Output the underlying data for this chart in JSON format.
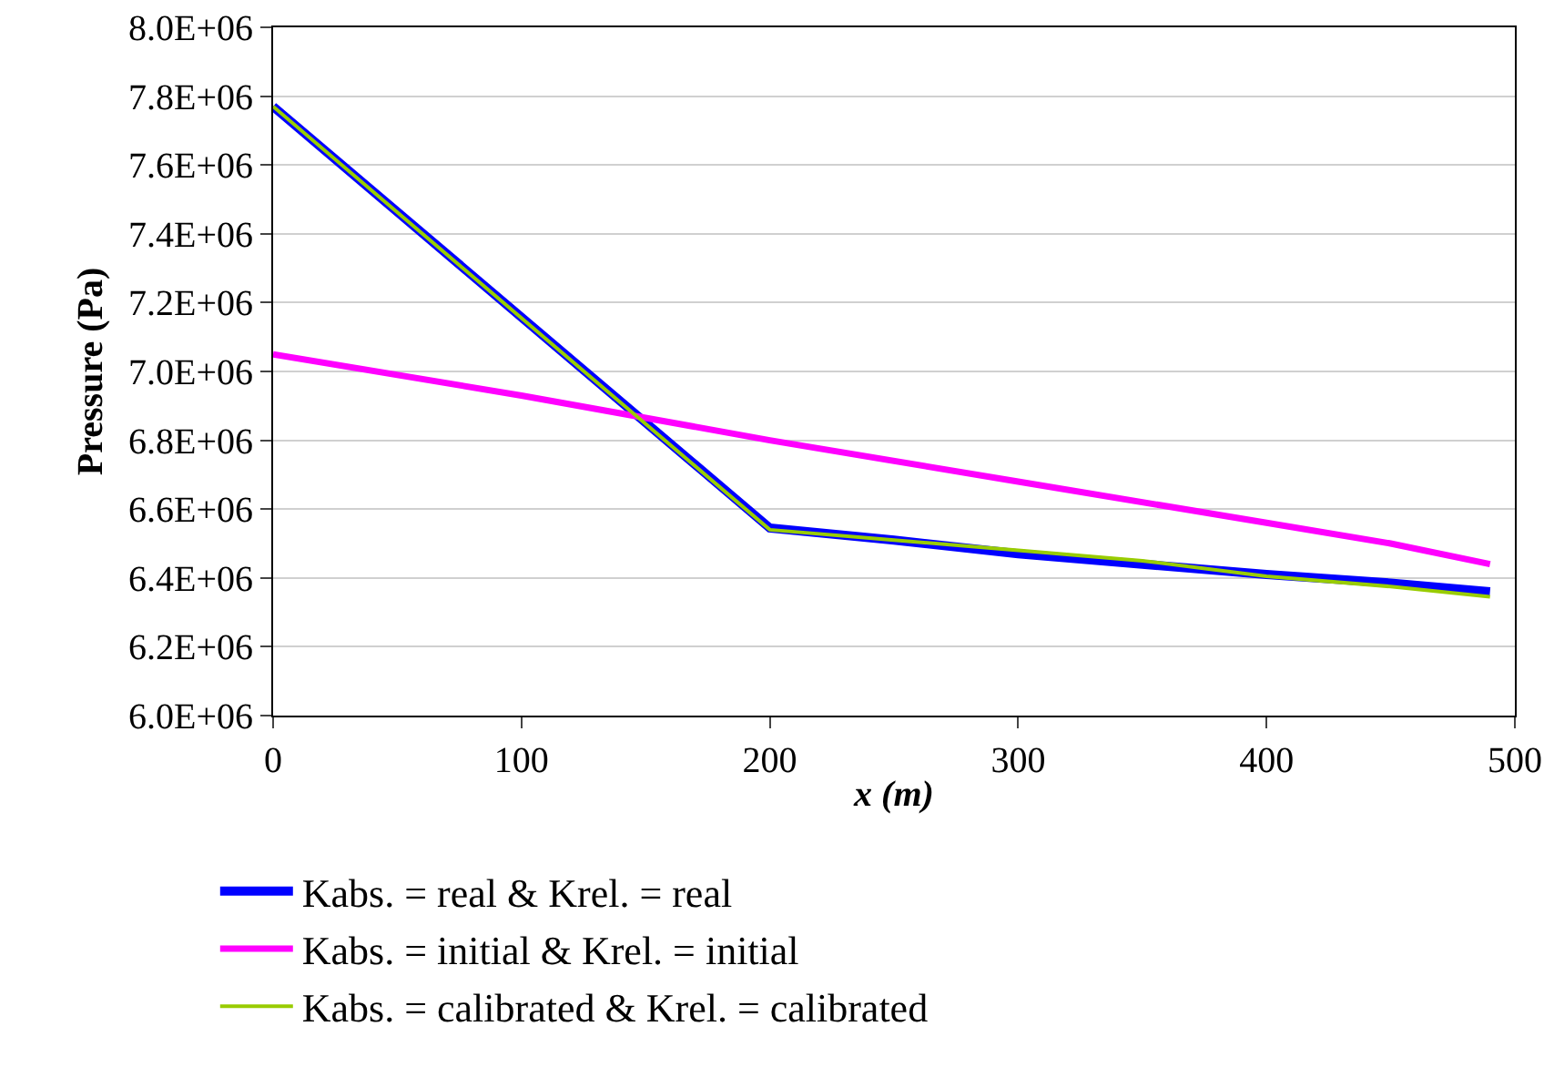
{
  "chart_data": {
    "type": "line",
    "xlabel": "x (m)",
    "ylabel": "Pressure (Pa)",
    "xlim": [
      0,
      500
    ],
    "xticks": [
      0,
      100,
      200,
      300,
      400,
      500
    ],
    "ylim": [
      6000000,
      8000000
    ],
    "yticks": [
      {
        "value": 6000000,
        "label": "6.0E+06"
      },
      {
        "value": 6200000,
        "label": "6.2E+06"
      },
      {
        "value": 6400000,
        "label": "6.4E+06"
      },
      {
        "value": 6600000,
        "label": "6.6E+06"
      },
      {
        "value": 6800000,
        "label": "6.8E+06"
      },
      {
        "value": 7000000,
        "label": "7.0E+06"
      },
      {
        "value": 7200000,
        "label": "7.2E+06"
      },
      {
        "value": 7400000,
        "label": "7.4E+06"
      },
      {
        "value": 7600000,
        "label": "7.6E+06"
      },
      {
        "value": 7800000,
        "label": "7.8E+06"
      },
      {
        "value": 8000000,
        "label": "8.0E+06"
      }
    ],
    "grid": "y",
    "legend": "bottom",
    "marker": "none",
    "line_style": "solid",
    "series": [
      {
        "name": "Kabs. = real & Krel. = real",
        "color": "#0000ff",
        "x": [
          0,
          200,
          250,
          300,
          350,
          400,
          450,
          490
        ],
        "values": [
          7770000,
          6545000,
          6510000,
          6470000,
          6440000,
          6410000,
          6385000,
          6360000
        ]
      },
      {
        "name": "Kabs. = initial & Krel. = initial",
        "color": "#ff00ff",
        "x": [
          0,
          100,
          200,
          300,
          400,
          450,
          490
        ],
        "values": [
          7050000,
          6930000,
          6800000,
          6680000,
          6560000,
          6500000,
          6440000
        ]
      },
      {
        "name": "Kabs. = calibrated & Krel. = calibrated",
        "color": "#99cc00",
        "x": [
          0,
          200,
          250,
          300,
          350,
          400,
          450,
          490
        ],
        "values": [
          7770000,
          6540000,
          6510000,
          6480000,
          6450000,
          6405000,
          6375000,
          6345000
        ]
      }
    ]
  }
}
